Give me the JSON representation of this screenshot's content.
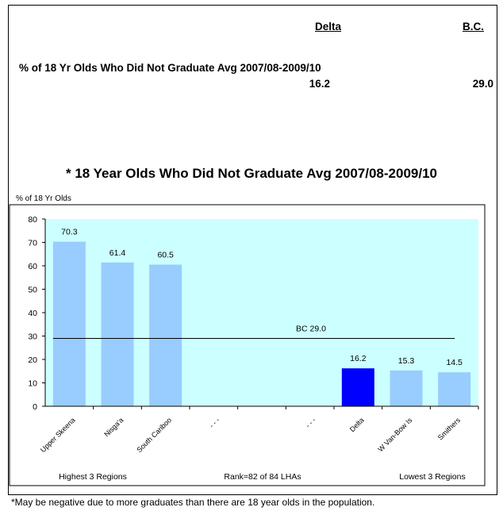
{
  "header": {
    "col_delta": "Delta",
    "col_bc": "B.C.",
    "metric_label": "% of 18 Yr Olds Who Did Not Graduate Avg 2007/08-2009/10",
    "value_delta": "16.2",
    "value_bc": "29.0"
  },
  "chart": {
    "title": "* 18 Year Olds Who Did Not Graduate Avg 2007/08-2009/10",
    "y_unit": "% of 18 Yr Olds",
    "note_left": "Highest 3 Regions",
    "note_center": "Rank=82 of 84 LHAs",
    "note_right": "Lowest 3 Regions",
    "reference_label": "BC 29.0"
  },
  "footnote": "*May be negative due to more graduates than there are 18 year olds in the population.",
  "chart_data": {
    "type": "bar",
    "title": "* 18 Year Olds Who Did Not Graduate Avg 2007/08-2009/10",
    "ylabel": "% of 18 Yr Olds",
    "ylim": [
      0,
      80
    ],
    "yticks": [
      0,
      10,
      20,
      30,
      40,
      50,
      60,
      70,
      80
    ],
    "categories": [
      "Upper Skeena",
      "Nisga'a",
      "South Cariboo",
      "- - -",
      "",
      "- - -",
      "Delta",
      "W Van-Bow Is",
      "Smithers"
    ],
    "values": [
      70.3,
      61.4,
      60.5,
      null,
      null,
      null,
      16.2,
      15.3,
      14.5
    ],
    "value_labels": [
      "70.3",
      "61.4",
      "60.5",
      "",
      "",
      "",
      "16.2",
      "15.3",
      "14.5"
    ],
    "highlight_index": 6,
    "reference_line": {
      "value": 29.0,
      "label": "BC 29.0"
    },
    "colors": {
      "bar": "#99ccff",
      "highlight": "#0000ff",
      "plot_bg": "#ccffff"
    },
    "grid": false
  }
}
